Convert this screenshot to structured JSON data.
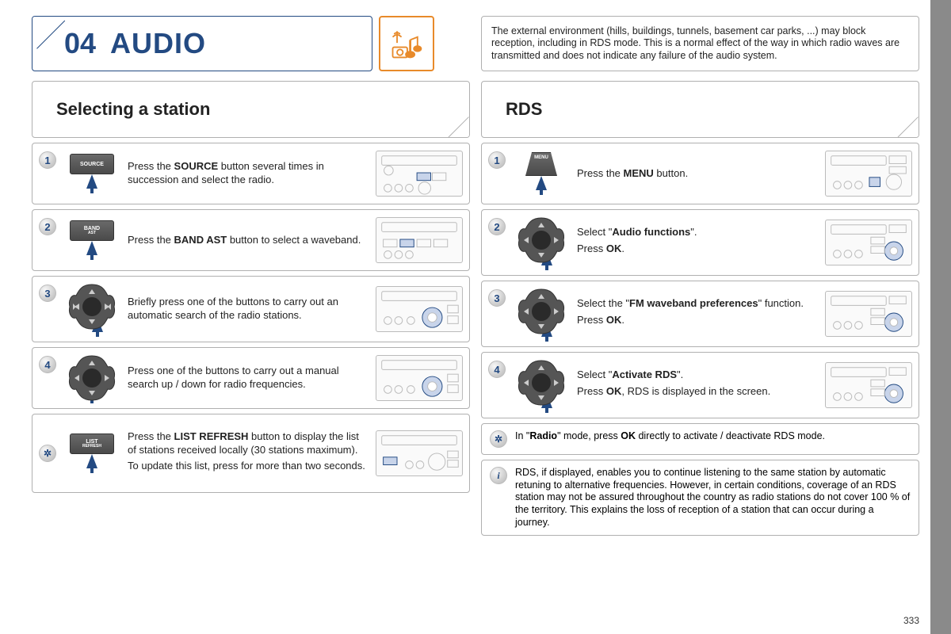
{
  "page_number": "333",
  "chapter": {
    "num": "04",
    "title": "AUDIO"
  },
  "env_note": "The external environment (hills, buildings, tunnels, basement car parks, ...) may block reception, including in RDS mode. This is a normal effect of the way in which radio waves are transmitted and does not indicate any failure of the audio system.",
  "left": {
    "title": "Selecting a station",
    "steps": [
      {
        "num": "1",
        "btn_label": "SOURCE",
        "text_html": "Press the <b>SOURCE</b> button several times in succession and select the radio."
      },
      {
        "num": "2",
        "btn_label": "BAND",
        "btn_sub": "AST",
        "text_html": "Press the <b>BAND AST</b> button to select a waveband."
      },
      {
        "num": "3",
        "text_html": "Briefly press one of the buttons to carry out an automatic search of the radio stations."
      },
      {
        "num": "4",
        "text_html": "Press one of the buttons to carry out a manual search up / down for radio frequencies."
      }
    ],
    "tip": {
      "btn_label": "LIST",
      "btn_sub": "REFRESH",
      "text_html": "Press the <b>LIST REFRESH</b> button to display the list of stations received locally (30 stations maximum).",
      "text2": "To update this list, press for more than two seconds."
    }
  },
  "right": {
    "title": "RDS",
    "steps": [
      {
        "num": "1",
        "btn_label": "MENU",
        "text_html": "Press the <b>MENU</b> button."
      },
      {
        "num": "2",
        "text_html": "Select \"<b>Audio functions</b>\".",
        "text2_html": "Press <b>OK</b>."
      },
      {
        "num": "3",
        "text_html": "Select the \"<b>FM waveband preferences</b>\" function.",
        "text2_html": "Press <b>OK</b>."
      },
      {
        "num": "4",
        "text_html": "Select \"<b>Activate RDS</b>\".",
        "text2_html": "Press <b>OK</b>, RDS is displayed in the screen."
      }
    ],
    "tip_radio_html": "In \"<b>Radio</b>\" mode, press <b>OK</b> directly to activate / deactivate RDS mode.",
    "tip_warn": "RDS, if displayed, enables you to continue listening to the same station by automatic retuning to alternative frequencies. However, in certain conditions, coverage of an RDS station may not be assured throughout the country as radio stations do not cover 100 % of the territory. This explains the loss of reception of a station that can occur during a journey."
  },
  "colors": {
    "accent": "#234a82",
    "orange": "#e88a2a",
    "border": "#b0b0b0"
  }
}
